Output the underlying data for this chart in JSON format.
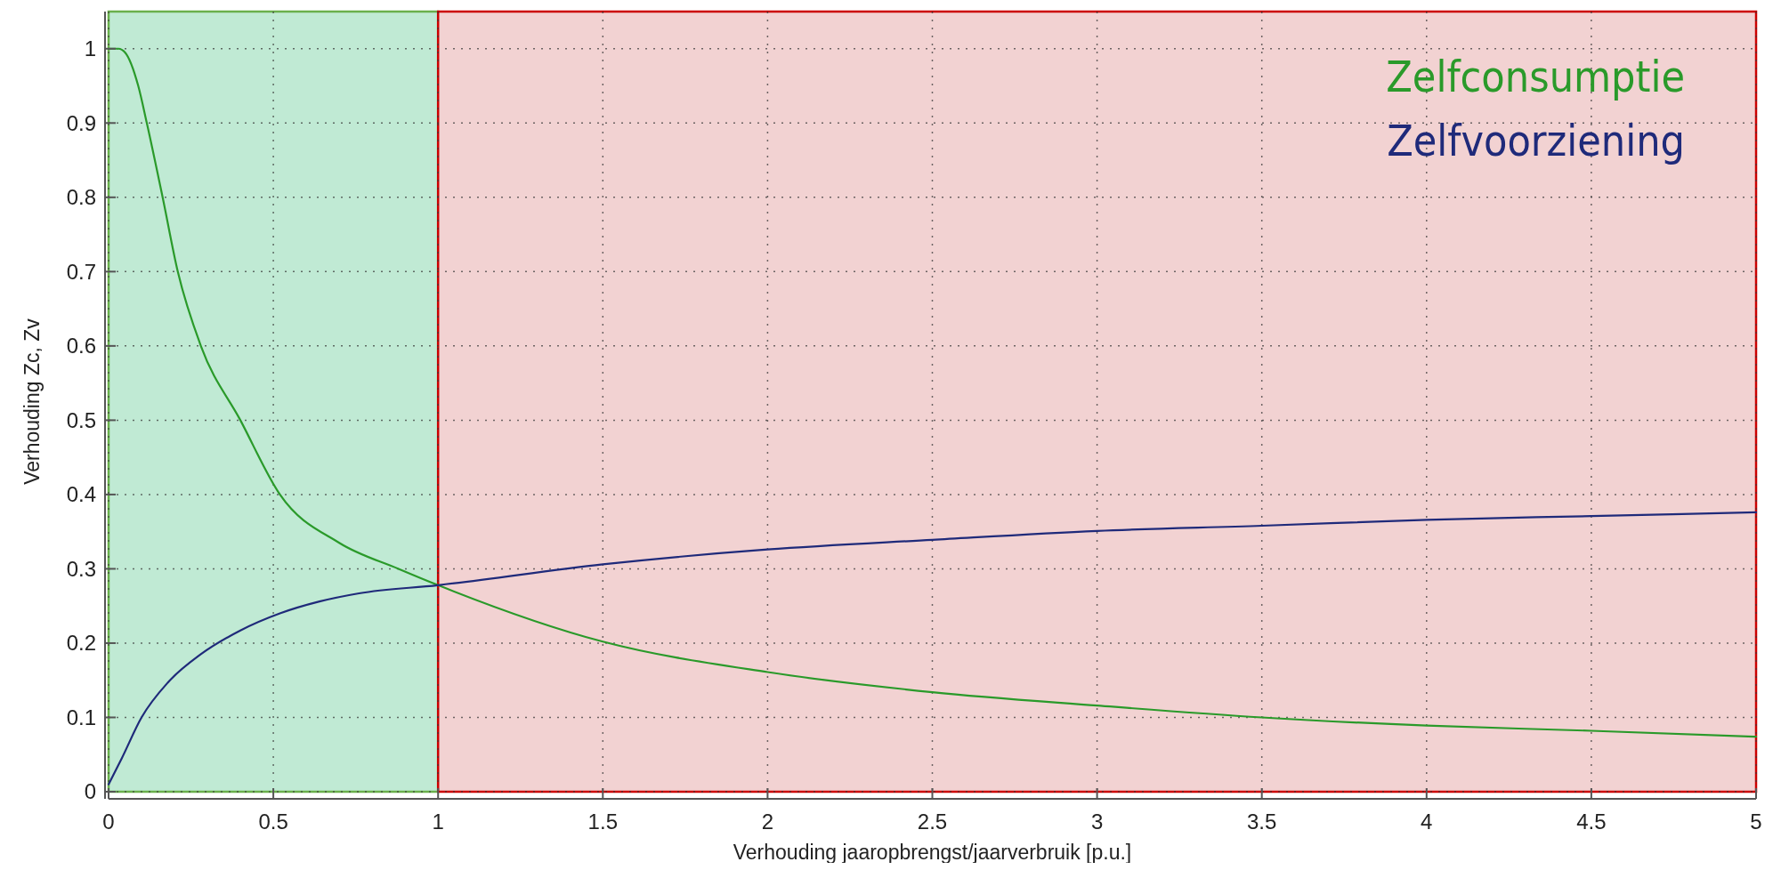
{
  "chart_data": {
    "type": "line",
    "xlabel": "Verhouding jaaropbrengst/jaarverbruik [p.u.]",
    "ylabel": "Verhouding Zc, Zv",
    "xlim": [
      0,
      5
    ],
    "ylim": [
      0,
      1.05
    ],
    "xticks": [
      0,
      0.5,
      1,
      1.5,
      2,
      2.5,
      3,
      3.5,
      4,
      4.5,
      5
    ],
    "yticks": [
      0,
      0.1,
      0.2,
      0.3,
      0.4,
      0.5,
      0.6,
      0.7,
      0.8,
      0.9,
      1
    ],
    "grid": true,
    "legend": "top right",
    "line_style": "solid",
    "bands": [
      {
        "axis": "x",
        "from": 0,
        "to": 1,
        "color": "#c0ead4"
      },
      {
        "axis": "x",
        "from": 1,
        "to": 5,
        "color": "#f2d2d2"
      }
    ],
    "series": [
      {
        "name": "Zelfconsumptie",
        "color": "#2a9a2a",
        "x": [
          0,
          0.03,
          0.05,
          0.09,
          0.116,
          0.164,
          0.21,
          0.28,
          0.4,
          0.52,
          0.7,
          0.88,
          1,
          1.5,
          2,
          2.5,
          3,
          3.5,
          4,
          4.5,
          5
        ],
        "values": [
          1,
          1,
          0.995,
          0.95,
          0.9,
          0.8,
          0.7,
          0.6,
          0.5,
          0.4,
          0.335,
          0.3,
          0.278,
          0.202,
          0.161,
          0.134,
          0.116,
          0.1,
          0.089,
          0.082,
          0.074
        ]
      },
      {
        "name": "Zelfvoorziening",
        "color": "#1f2a7a",
        "x": [
          0,
          0.04,
          0.1,
          0.18,
          0.28,
          0.4,
          0.52,
          0.64,
          0.76,
          1,
          1.5,
          2,
          2.5,
          3,
          3.5,
          4,
          4.5,
          5
        ],
        "values": [
          0.01,
          0.045,
          0.1,
          0.147,
          0.185,
          0.217,
          0.24,
          0.256,
          0.267,
          0.278,
          0.306,
          0.326,
          0.339,
          0.351,
          0.358,
          0.366,
          0.371,
          0.376
        ]
      }
    ]
  }
}
